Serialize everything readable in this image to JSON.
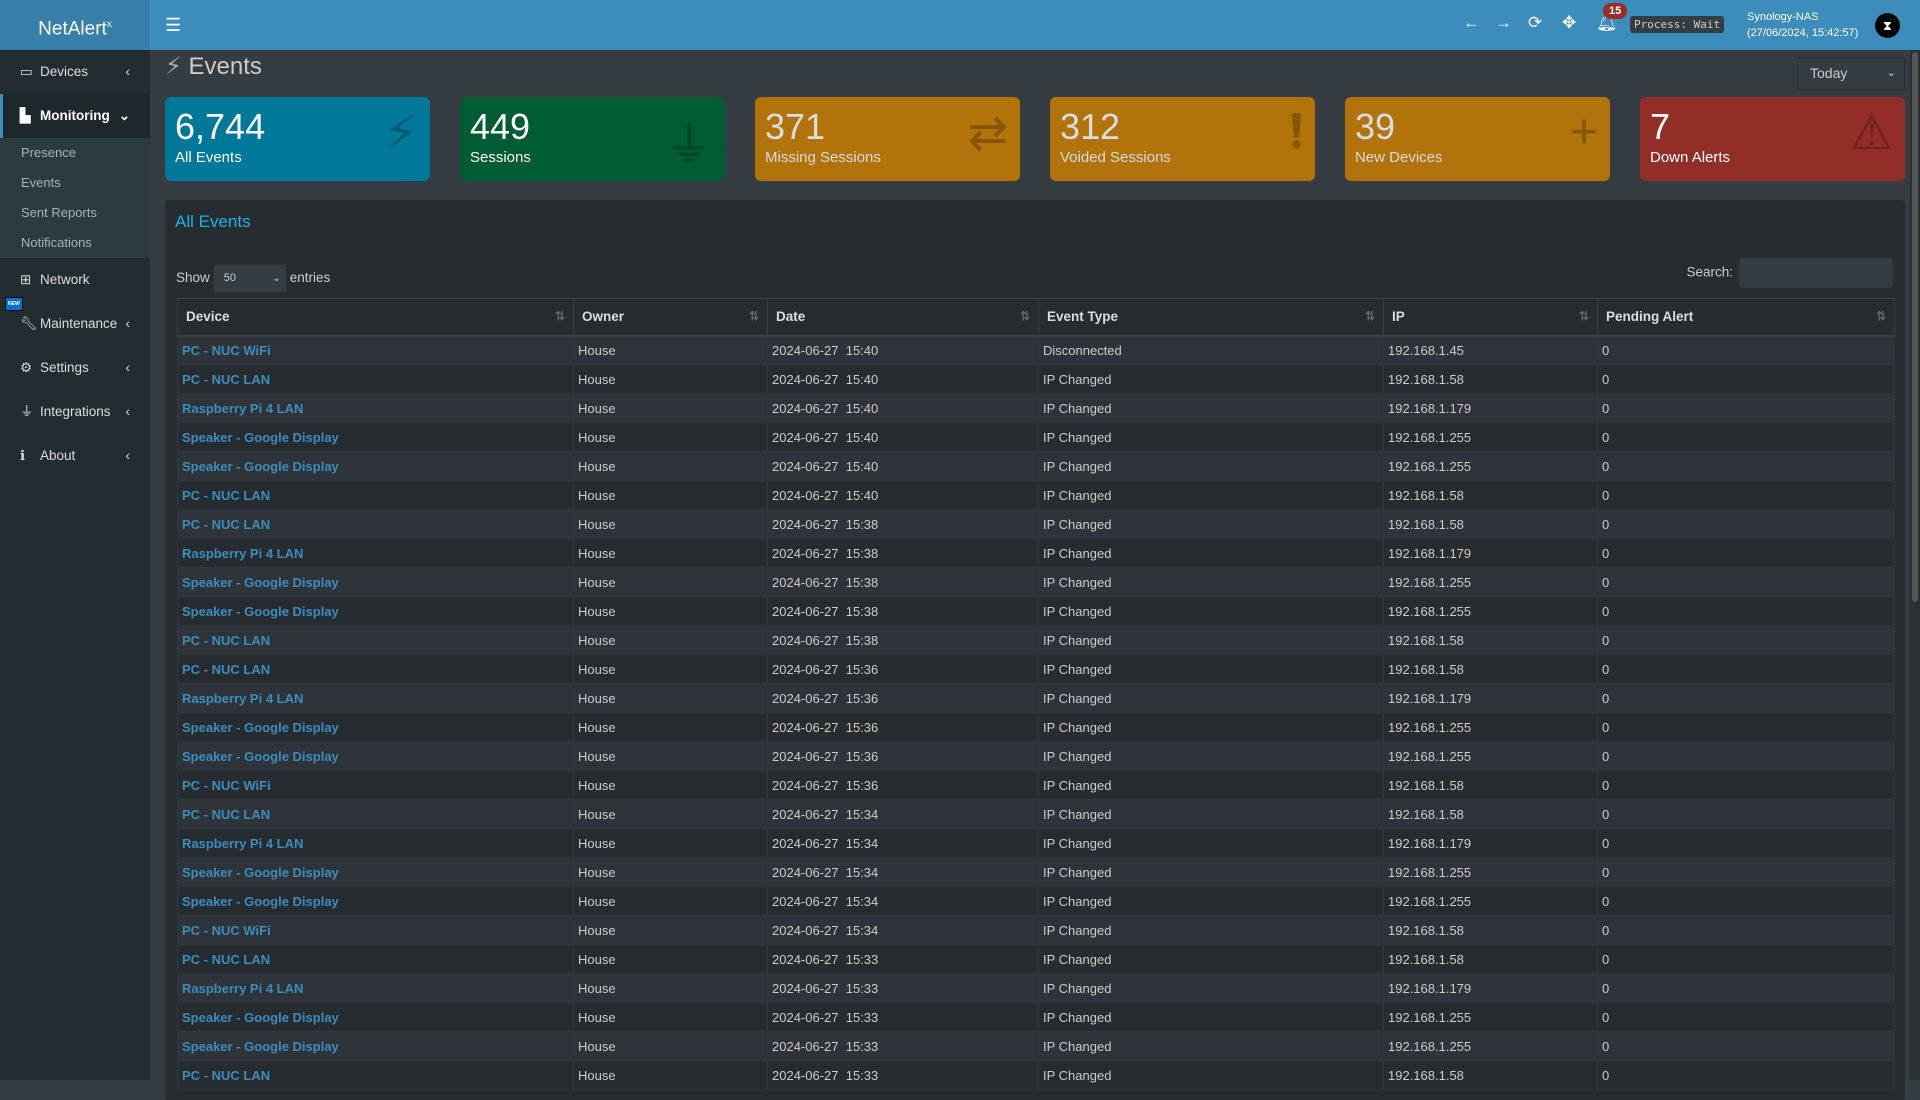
{
  "app": {
    "logo": "NetAlert",
    "logo_sup": "x",
    "notifications": "15",
    "process": "Process: Wait",
    "host": "Synology-NAS",
    "datetime": "(27/06/2024, 15:42:57)"
  },
  "sidebar": {
    "items": [
      {
        "label": "Devices",
        "icon": "laptop-icon"
      },
      {
        "label": "Monitoring",
        "icon": "chart-icon"
      },
      {
        "label": "Network",
        "icon": "network-icon"
      },
      {
        "label": "Maintenance",
        "icon": "wrench-icon"
      },
      {
        "label": "Settings",
        "icon": "gear-icon"
      },
      {
        "label": "Integrations",
        "icon": "plug-icon"
      },
      {
        "label": "About",
        "icon": "info-icon"
      }
    ],
    "submenu": [
      "Presence",
      "Events",
      "Sent Reports",
      "Notifications"
    ],
    "new_badge": "NEW"
  },
  "page": {
    "title": "Events",
    "period": "Today"
  },
  "cards": [
    {
      "value": "6,744",
      "label": "All Events",
      "color": "#00789a",
      "icon": "bolt-icon"
    },
    {
      "value": "449",
      "label": "Sessions",
      "color": "#005c33",
      "icon": "plug-icon"
    },
    {
      "value": "371",
      "label": "Missing Sessions",
      "color": "#b3730b",
      "icon": "exchange-icon"
    },
    {
      "value": "312",
      "label": "Voided Sessions",
      "color": "#b3730b",
      "icon": "exclamation-icon"
    },
    {
      "value": "39",
      "label": "New Devices",
      "color": "#b3730b",
      "icon": "plus-icon"
    },
    {
      "value": "7",
      "label": "Down Alerts",
      "color": "#922e27",
      "icon": "warning-icon"
    }
  ],
  "table": {
    "title": "All Events",
    "show": "Show",
    "entries_value": "50",
    "entries": "entries",
    "search": "Search:",
    "columns": [
      "Device",
      "Owner",
      "Date",
      "Event Type",
      "IP",
      "Pending Alert"
    ],
    "rows": [
      [
        "PC - NUC WiFi",
        "House",
        "2024-06-27  15:40",
        "Disconnected",
        "192.168.1.45",
        "0"
      ],
      [
        "PC - NUC LAN",
        "House",
        "2024-06-27  15:40",
        "IP Changed",
        "192.168.1.58",
        "0"
      ],
      [
        "Raspberry Pi 4 LAN",
        "House",
        "2024-06-27  15:40",
        "IP Changed",
        "192.168.1.179",
        "0"
      ],
      [
        "Speaker - Google Display",
        "House",
        "2024-06-27  15:40",
        "IP Changed",
        "192.168.1.255",
        "0"
      ],
      [
        "Speaker - Google Display",
        "House",
        "2024-06-27  15:40",
        "IP Changed",
        "192.168.1.255",
        "0"
      ],
      [
        "PC - NUC LAN",
        "House",
        "2024-06-27  15:40",
        "IP Changed",
        "192.168.1.58",
        "0"
      ],
      [
        "PC - NUC LAN",
        "House",
        "2024-06-27  15:38",
        "IP Changed",
        "192.168.1.58",
        "0"
      ],
      [
        "Raspberry Pi 4 LAN",
        "House",
        "2024-06-27  15:38",
        "IP Changed",
        "192.168.1.179",
        "0"
      ],
      [
        "Speaker - Google Display",
        "House",
        "2024-06-27  15:38",
        "IP Changed",
        "192.168.1.255",
        "0"
      ],
      [
        "Speaker - Google Display",
        "House",
        "2024-06-27  15:38",
        "IP Changed",
        "192.168.1.255",
        "0"
      ],
      [
        "PC - NUC LAN",
        "House",
        "2024-06-27  15:38",
        "IP Changed",
        "192.168.1.58",
        "0"
      ],
      [
        "PC - NUC LAN",
        "House",
        "2024-06-27  15:36",
        "IP Changed",
        "192.168.1.58",
        "0"
      ],
      [
        "Raspberry Pi 4 LAN",
        "House",
        "2024-06-27  15:36",
        "IP Changed",
        "192.168.1.179",
        "0"
      ],
      [
        "Speaker - Google Display",
        "House",
        "2024-06-27  15:36",
        "IP Changed",
        "192.168.1.255",
        "0"
      ],
      [
        "Speaker - Google Display",
        "House",
        "2024-06-27  15:36",
        "IP Changed",
        "192.168.1.255",
        "0"
      ],
      [
        "PC - NUC WiFi",
        "House",
        "2024-06-27  15:36",
        "IP Changed",
        "192.168.1.58",
        "0"
      ],
      [
        "PC - NUC LAN",
        "House",
        "2024-06-27  15:34",
        "IP Changed",
        "192.168.1.58",
        "0"
      ],
      [
        "Raspberry Pi 4 LAN",
        "House",
        "2024-06-27  15:34",
        "IP Changed",
        "192.168.1.179",
        "0"
      ],
      [
        "Speaker - Google Display",
        "House",
        "2024-06-27  15:34",
        "IP Changed",
        "192.168.1.255",
        "0"
      ],
      [
        "Speaker - Google Display",
        "House",
        "2024-06-27  15:34",
        "IP Changed",
        "192.168.1.255",
        "0"
      ],
      [
        "PC - NUC WiFi",
        "House",
        "2024-06-27  15:34",
        "IP Changed",
        "192.168.1.58",
        "0"
      ],
      [
        "PC - NUC LAN",
        "House",
        "2024-06-27  15:33",
        "IP Changed",
        "192.168.1.58",
        "0"
      ],
      [
        "Raspberry Pi 4 LAN",
        "House",
        "2024-06-27  15:33",
        "IP Changed",
        "192.168.1.179",
        "0"
      ],
      [
        "Speaker - Google Display",
        "House",
        "2024-06-27  15:33",
        "IP Changed",
        "192.168.1.255",
        "0"
      ],
      [
        "Speaker - Google Display",
        "House",
        "2024-06-27  15:33",
        "IP Changed",
        "192.168.1.255",
        "0"
      ],
      [
        "PC - NUC LAN",
        "House",
        "2024-06-27  15:33",
        "IP Changed",
        "192.168.1.58",
        "0"
      ]
    ]
  }
}
